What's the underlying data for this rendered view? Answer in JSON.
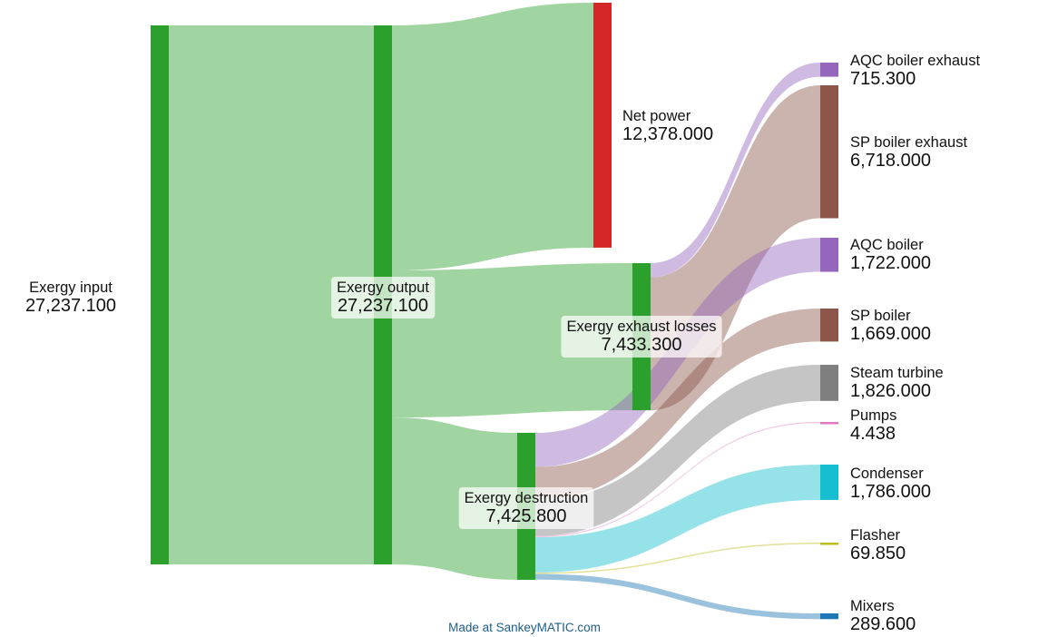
{
  "nodes": [
    {
      "id": "input",
      "name": "Exergy input",
      "value": "27,237.100",
      "color": "#2ca02c"
    },
    {
      "id": "output",
      "name": "Exergy output",
      "value": "27,237.100",
      "color": "#2ca02c"
    },
    {
      "id": "net",
      "name": "Net power",
      "value": "12,378.000",
      "color": "#d62728"
    },
    {
      "id": "exh",
      "name": "Exergy exhaust losses",
      "value": "7,433.300",
      "color": "#2ca02c"
    },
    {
      "id": "des",
      "name": "Exergy destruction",
      "value": "7,425.800",
      "color": "#2ca02c"
    },
    {
      "id": "aqce",
      "name": "AQC boiler exhaust",
      "value": "715.300",
      "color": "#9467bd"
    },
    {
      "id": "spe",
      "name": "SP boiler exhaust",
      "value": "6,718.000",
      "color": "#8c564b"
    },
    {
      "id": "aqc",
      "name": "AQC boiler",
      "value": "1,722.000",
      "color": "#9467bd"
    },
    {
      "id": "sp",
      "name": "SP boiler",
      "value": "1,669.000",
      "color": "#8c564b"
    },
    {
      "id": "st",
      "name": "Steam turbine",
      "value": "1,826.000",
      "color": "#7f7f7f"
    },
    {
      "id": "pumps",
      "name": "Pumps",
      "value": "4.438",
      "color": "#e377c2"
    },
    {
      "id": "cond",
      "name": "Condenser",
      "value": "1,786.000",
      "color": "#17becf"
    },
    {
      "id": "flash",
      "name": "Flasher",
      "value": "69.850",
      "color": "#bcbd22"
    },
    {
      "id": "mix",
      "name": "Mixers",
      "value": "289.600",
      "color": "#1f77b4"
    }
  ],
  "flows": [
    {
      "from": "input",
      "to": "output",
      "value": 27237.1,
      "color": "#2ca02c"
    },
    {
      "from": "output",
      "to": "net",
      "value": 12378.0,
      "color": "#2ca02c"
    },
    {
      "from": "output",
      "to": "exh",
      "value": 7433.3,
      "color": "#2ca02c"
    },
    {
      "from": "output",
      "to": "des",
      "value": 7425.8,
      "color": "#2ca02c"
    },
    {
      "from": "exh",
      "to": "aqce",
      "value": 715.3,
      "color": "#9467bd"
    },
    {
      "from": "exh",
      "to": "spe",
      "value": 6718.0,
      "color": "#8c564b"
    },
    {
      "from": "des",
      "to": "aqc",
      "value": 1722.0,
      "color": "#9467bd"
    },
    {
      "from": "des",
      "to": "sp",
      "value": 1669.0,
      "color": "#8c564b"
    },
    {
      "from": "des",
      "to": "st",
      "value": 1826.0,
      "color": "#7f7f7f"
    },
    {
      "from": "des",
      "to": "pumps",
      "value": 4.438,
      "color": "#e377c2"
    },
    {
      "from": "des",
      "to": "cond",
      "value": 1786.0,
      "color": "#17becf"
    },
    {
      "from": "des",
      "to": "flash",
      "value": 69.85,
      "color": "#bcbd22"
    },
    {
      "from": "des",
      "to": "mix",
      "value": 289.6,
      "color": "#1f77b4"
    }
  ],
  "credit": "Made at SankeyMATIC.com"
}
